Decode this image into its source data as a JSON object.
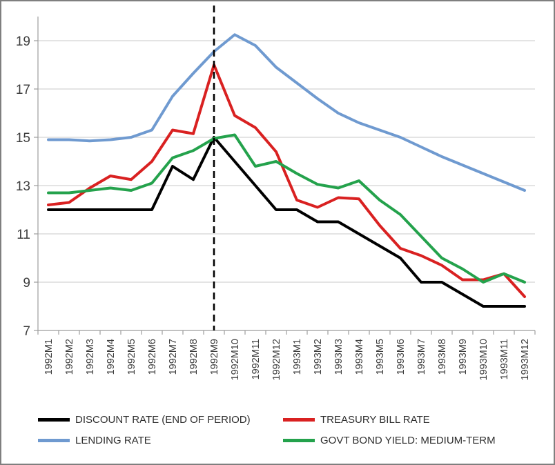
{
  "chart_data": {
    "type": "line",
    "title": "",
    "xlabel": "",
    "ylabel": "",
    "categories": [
      "1992M1",
      "1992M2",
      "1992M3",
      "1992M4",
      "1992M5",
      "1992M6",
      "1992M7",
      "1992M8",
      "1992M9",
      "1992M10",
      "1992M11",
      "1992M12",
      "1993M1",
      "1993M2",
      "1993M3",
      "1993M4",
      "1993M5",
      "1993M6",
      "1993M7",
      "1993M8",
      "1993M9",
      "1993M10",
      "1993M11",
      "1993M12"
    ],
    "series": [
      {
        "id": "discount-rate",
        "name": "DISCOUNT RATE (END OF PERIOD)",
        "color": "#000000",
        "values": [
          12.0,
          12.0,
          12.0,
          12.0,
          12.0,
          12.0,
          13.8,
          13.25,
          15.0,
          14.0,
          13.0,
          12.0,
          12.0,
          11.5,
          11.5,
          11.0,
          10.5,
          10.0,
          9.0,
          9.0,
          8.5,
          8.0,
          8.0,
          8.0
        ]
      },
      {
        "id": "treasury-bill-rate",
        "name": "TREASURY BILL RATE",
        "color": "#d92121",
        "values": [
          12.2,
          12.3,
          12.9,
          13.4,
          13.25,
          14.0,
          15.3,
          15.15,
          18.0,
          15.9,
          15.4,
          14.4,
          12.4,
          12.1,
          12.5,
          12.45,
          11.35,
          10.4,
          10.1,
          9.7,
          9.1,
          9.1,
          9.35,
          8.4
        ]
      },
      {
        "id": "lending-rate",
        "name": "LENDING RATE",
        "color": "#6f9ad0",
        "values": [
          14.9,
          14.9,
          14.85,
          14.9,
          15.0,
          15.3,
          16.7,
          17.65,
          18.55,
          19.25,
          18.8,
          17.9,
          17.25,
          16.6,
          16.0,
          15.6,
          15.3,
          15.0,
          14.6,
          14.2,
          13.85,
          13.5,
          13.15,
          12.8
        ]
      },
      {
        "id": "govt-bond-yield",
        "name": "GOVT BOND YIELD: MEDIUM-TERM",
        "color": "#24a24c",
        "values": [
          12.7,
          12.7,
          12.8,
          12.9,
          12.8,
          13.1,
          14.15,
          14.45,
          14.95,
          15.1,
          13.8,
          14.0,
          13.5,
          13.05,
          12.9,
          13.2,
          12.4,
          11.8,
          10.9,
          10.0,
          9.55,
          9.0,
          9.35,
          9.0
        ]
      }
    ],
    "y_ticks": [
      7,
      9,
      11,
      13,
      15,
      17,
      19
    ],
    "ylim": [
      7,
      20
    ],
    "grid": true,
    "legend_position": "bottom",
    "annotation": {
      "type": "vertical-dashed-line",
      "at_category": "1992M9",
      "color": "#000000"
    },
    "colors": {
      "gridline": "#c8c8c8",
      "axis": "#9c9c9c",
      "tick_text": "#3d3d3d",
      "background": "#ffffff",
      "frame_border": "#7f7f7f"
    }
  }
}
